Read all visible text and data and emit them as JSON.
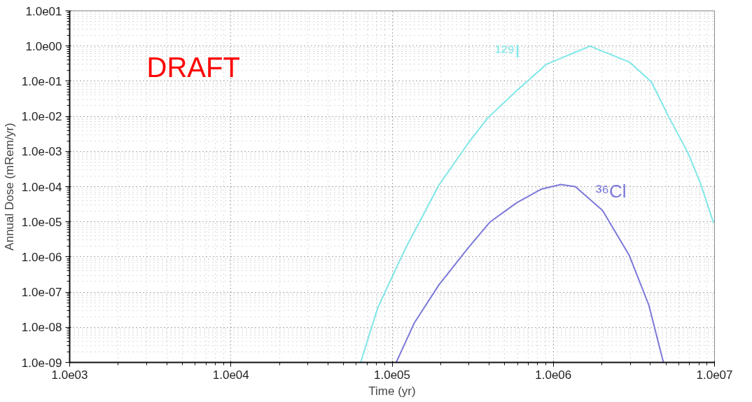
{
  "chart_data": {
    "type": "line",
    "xlabel": "Time (yr)",
    "ylabel": "Annual Dose (mRem/yr)",
    "log": "xy",
    "grid": true,
    "line_style": "solid",
    "marker": "none",
    "xlim": [
      1000,
      10000000
    ],
    "ylim": [
      1e-09,
      10
    ],
    "xticks": [
      {
        "value": 1000,
        "label": "1.0e03"
      },
      {
        "value": 10000,
        "label": "1.0e04"
      },
      {
        "value": 100000,
        "label": "1.0e05"
      },
      {
        "value": 1000000,
        "label": "1.0e06"
      },
      {
        "value": 10000000,
        "label": "1.0e07"
      }
    ],
    "yticks": [
      {
        "value": 1e-09,
        "label": "1.0e-09"
      },
      {
        "value": 1e-08,
        "label": "1.0e-08"
      },
      {
        "value": 1e-07,
        "label": "1.0e-07"
      },
      {
        "value": 1e-06,
        "label": "1.0e-06"
      },
      {
        "value": 1e-05,
        "label": "1.0e-05"
      },
      {
        "value": 0.0001,
        "label": "1.0e-04"
      },
      {
        "value": 0.001,
        "label": "1.0e-03"
      },
      {
        "value": 0.01,
        "label": "1.0e-02"
      },
      {
        "value": 0.1,
        "label": "1.0e-01"
      },
      {
        "value": 1,
        "label": "1.0e00"
      },
      {
        "value": 10,
        "label": "1.0e01"
      }
    ],
    "annotations": [
      "DRAFT"
    ],
    "series": [
      {
        "name": "¹²⁹I",
        "color": "#7fe6e8",
        "x": [
          63800,
          81500,
          119000,
          195000,
          296000,
          391000,
          594000,
          904000,
          1690000,
          2960000,
          4060000,
          5180000,
          6840000,
          8150000,
          9860000
        ],
        "values": [
          1e-09,
          3.6e-08,
          1.5e-06,
          0.00011,
          0.0017,
          0.0089,
          0.054,
          0.3,
          0.99,
          0.35,
          0.095,
          0.01,
          0.00091,
          0.00013,
          9.3e-06
        ]
      },
      {
        "name": "³⁶Cl",
        "color": "#7b78d8",
        "x": [
          106000,
          137000,
          195000,
          296000,
          406000,
          594000,
          843000,
          1110000,
          1370000,
          2020000,
          2960000,
          3910000,
          4820000
        ],
        "values": [
          1e-09,
          1.3e-08,
          1.6e-07,
          1.8e-06,
          1e-05,
          3.5e-05,
          8.5e-05,
          0.000115,
          0.0001,
          2.1e-05,
          1.1e-06,
          4.3e-08,
          1e-09
        ]
      }
    ]
  }
}
